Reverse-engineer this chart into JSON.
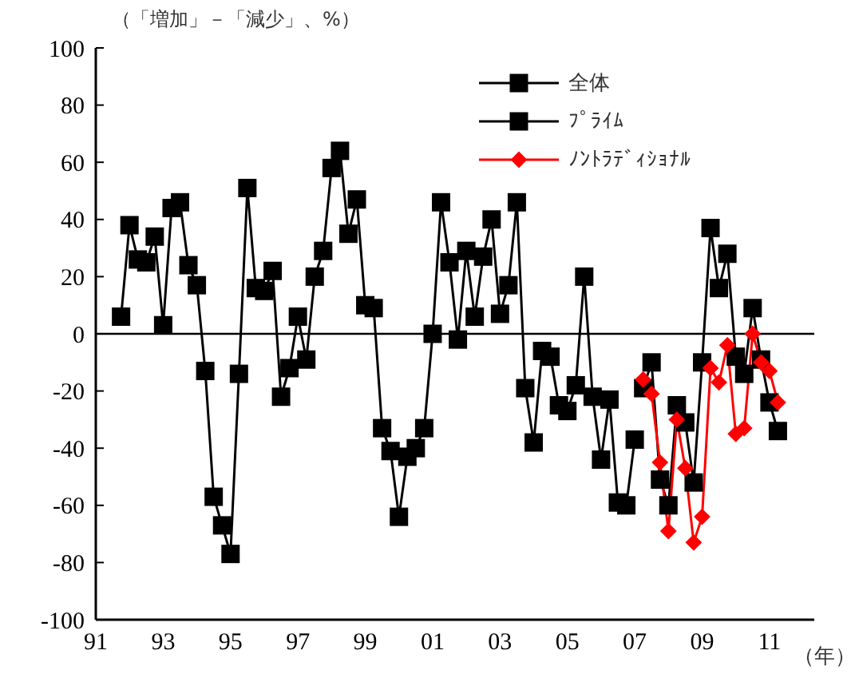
{
  "chart_data": {
    "type": "line",
    "ylabel": "（「増加」－「減少」、%）",
    "xlabel": "（年）",
    "xlim": [
      1991,
      2012.33
    ],
    "xticks": [
      {
        "value": 1991,
        "label": "91"
      },
      {
        "value": 1993,
        "label": "93"
      },
      {
        "value": 1995,
        "label": "95"
      },
      {
        "value": 1997,
        "label": "97"
      },
      {
        "value": 1999,
        "label": "99"
      },
      {
        "value": 2001,
        "label": "01"
      },
      {
        "value": 2003,
        "label": "03"
      },
      {
        "value": 2005,
        "label": "05"
      },
      {
        "value": 2007,
        "label": "07"
      },
      {
        "value": 2009,
        "label": "09"
      },
      {
        "value": 2011,
        "label": "11"
      }
    ],
    "ylim": [
      -100,
      100
    ],
    "yticks": [
      -100,
      -80,
      -60,
      -40,
      -20,
      0,
      20,
      40,
      60,
      80,
      100
    ],
    "grid": false,
    "legend": "top right",
    "line_style": "solid",
    "ref_lines": [
      {
        "axis": "y",
        "value": 0,
        "color": "#000000"
      }
    ],
    "series": [
      {
        "name": "全体",
        "color": "#000000",
        "marker": "square",
        "x": [
          1991.75,
          1992,
          1992.25,
          1992.5,
          1992.75,
          1993,
          1993.25,
          1993.5,
          1993.75,
          1994,
          1994.25,
          1994.5,
          1994.75,
          1995,
          1995.25,
          1995.5,
          1995.75,
          1996,
          1996.25,
          1996.5,
          1996.75,
          1997,
          1997.25,
          1997.5,
          1997.75,
          1998,
          1998.25,
          1998.5,
          1998.75,
          1999,
          1999.25,
          1999.5,
          1999.75,
          2000,
          2000.25,
          2000.5,
          2000.75,
          2001,
          2001.25,
          2001.5,
          2001.75,
          2002,
          2002.25,
          2002.5,
          2002.75,
          2003,
          2003.25,
          2003.5,
          2003.75,
          2004,
          2004.25,
          2004.5,
          2004.75,
          2005,
          2005.25,
          2005.5,
          2005.75,
          2006,
          2006.25,
          2006.5,
          2006.75,
          2007
        ],
        "values": [
          6,
          38,
          26,
          25,
          34,
          3,
          44,
          46,
          24,
          17,
          -13,
          -57,
          -67,
          -77,
          -14,
          51,
          16,
          15,
          22,
          -22,
          -12,
          6,
          -9,
          20,
          29,
          58,
          64,
          35,
          47,
          10,
          9,
          -33,
          -41,
          -64,
          -43,
          -40,
          -33,
          0,
          46,
          25,
          -2,
          29,
          6,
          27,
          40,
          7,
          17,
          46,
          -19,
          -38,
          -6,
          -8,
          -25,
          -27,
          -18,
          20,
          -22,
          -44,
          -23,
          -59,
          -60,
          -37
        ]
      },
      {
        "name": "ﾌﾟﾗｲﾑ",
        "color": "#000000",
        "marker": "square",
        "x": [
          2007.25,
          2007.5,
          2007.75,
          2008,
          2008.25,
          2008.5,
          2008.75,
          2009,
          2009.25,
          2009.5,
          2009.75,
          2010,
          2010.25,
          2010.5,
          2010.75,
          2011,
          2011.25
        ],
        "values": [
          -19,
          -10,
          -51,
          -60,
          -25,
          -31,
          -52,
          -10,
          37,
          16,
          28,
          -8,
          -14,
          9,
          -9,
          -24,
          -34
        ]
      },
      {
        "name": "ﾉﾝﾄﾗﾃﾞｨｼｮﾅﾙ",
        "color": "#ff0000",
        "marker": "diamond",
        "x": [
          2007.25,
          2007.5,
          2007.75,
          2008,
          2008.25,
          2008.5,
          2008.75,
          2009,
          2009.25,
          2009.5,
          2009.75,
          2010,
          2010.25,
          2010.5,
          2010.75,
          2011,
          2011.25
        ],
        "values": [
          -16,
          -21,
          -45,
          -69,
          -30,
          -47,
          -73,
          -64,
          -12,
          -17,
          -4,
          -35,
          -33,
          0,
          -10,
          -13,
          -24
        ]
      }
    ]
  }
}
